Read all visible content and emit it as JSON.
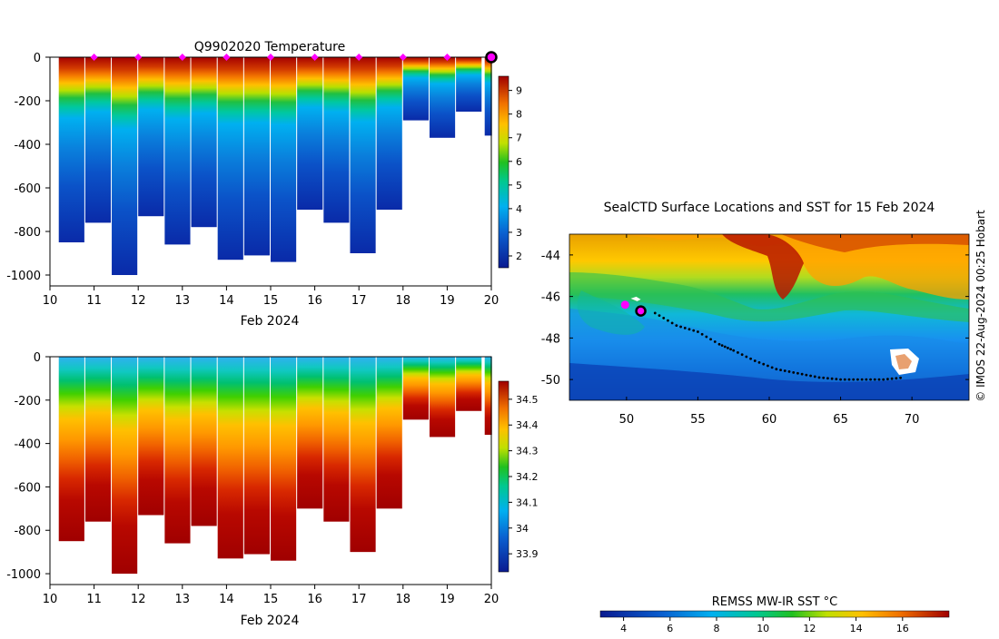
{
  "chart_data": [
    {
      "type": "heatmap",
      "title": "Q9902020  Temperature",
      "xlabel": "Feb 2024",
      "ylabel": "",
      "x_ticks": [
        "10",
        "11",
        "12",
        "13",
        "14",
        "15",
        "16",
        "17",
        "18",
        "19",
        "20"
      ],
      "y_ticks": [
        "0",
        "-200",
        "-400",
        "-600",
        "-800",
        "-1000"
      ],
      "xlim": [
        10,
        20
      ],
      "ylim": [
        -1050,
        0
      ],
      "colorbar": {
        "ticks": [
          "2",
          "3",
          "4",
          "5",
          "6",
          "7",
          "8",
          "9"
        ],
        "range": [
          1.5,
          9.6
        ]
      },
      "surface_markers_x": [
        11,
        12,
        13,
        14,
        15,
        16,
        17,
        18,
        19
      ],
      "current_marker_x": 20,
      "profile_series": {
        "x": [
          10.2,
          10.8,
          11.4,
          12.0,
          12.6,
          13.2,
          13.8,
          14.4,
          15.0,
          15.6,
          16.2,
          16.8,
          17.4,
          18.0,
          18.6,
          19.2
        ],
        "max_depth": [
          -850,
          -760,
          -1000,
          -730,
          -860,
          -780,
          -930,
          -910,
          -940,
          -700,
          -760,
          -900,
          -700,
          -290,
          -370,
          -250
        ]
      }
    },
    {
      "type": "heatmap",
      "title": "",
      "xlabel": "Feb 2024",
      "ylabel": "",
      "x_ticks": [
        "10",
        "11",
        "12",
        "13",
        "14",
        "15",
        "16",
        "17",
        "18",
        "19",
        "20"
      ],
      "y_ticks": [
        "0",
        "-200",
        "-400",
        "-600",
        "-800",
        "-1000"
      ],
      "xlim": [
        10,
        20
      ],
      "ylim": [
        -1050,
        0
      ],
      "colorbar": {
        "ticks": [
          "33.9",
          "34",
          "34.1",
          "34.2",
          "34.3",
          "34.4",
          "34.5"
        ],
        "range": [
          33.83,
          34.57
        ]
      }
    },
    {
      "type": "heatmap",
      "title": "SealCTD Surface Locations and SST for 15 Feb 2024",
      "xlabel": "",
      "ylabel": "",
      "x_ticks": [
        "50",
        "55",
        "60",
        "65",
        "70"
      ],
      "y_ticks": [
        "-44",
        "-46",
        "-48",
        "-50"
      ],
      "xlim": [
        46,
        74
      ],
      "ylim": [
        -51,
        -43
      ],
      "colorbar": {
        "label": "REMSS MW-IR SST °C",
        "ticks": [
          "4",
          "6",
          "8",
          "10",
          "12",
          "14",
          "16"
        ],
        "range": [
          3,
          18
        ]
      },
      "track": {
        "lon": [
          52.0,
          53.5,
          55.0,
          56.5,
          57.5,
          59.0,
          60.5,
          62.0,
          63.5,
          65.0,
          66.5,
          68.0,
          69.5
        ],
        "lat": [
          -46.8,
          -47.4,
          -47.7,
          -48.3,
          -48.6,
          -49.1,
          -49.5,
          -49.7,
          -49.9,
          -50.0,
          -50.0,
          -50.0,
          -49.9
        ]
      },
      "current_position": {
        "lon": 51.0,
        "lat": -46.7
      }
    }
  ],
  "credit": "© IMOS 22-Aug-2024 00:25 Hobart",
  "colors": {
    "marker": "#ff00ff",
    "track": "#000000"
  }
}
